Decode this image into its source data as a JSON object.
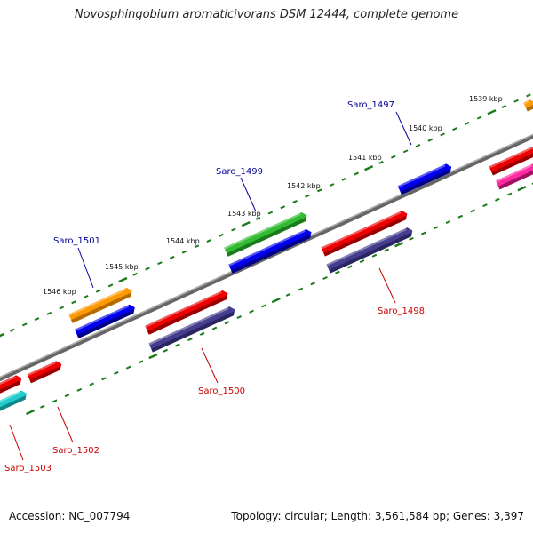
{
  "title": "Novosphingobium aromaticivorans DSM 12444, complete genome",
  "footer": {
    "accession": "Accession: NC_007794",
    "summary": "Topology: circular; Length: 3,561,584 bp; Genes: 3,397"
  },
  "scale": {
    "kbp_labels": [
      "1539 kbp",
      "1540 kbp",
      "1541 kbp",
      "1542 kbp",
      "1543 kbp",
      "1544 kbp",
      "1545 kbp",
      "1546 kbp"
    ]
  },
  "genes": [
    {
      "id": "Saro_1497",
      "label": "Saro_1497",
      "track": "outer-2",
      "color": "#0000ee"
    },
    {
      "id": "Saro_1498",
      "label": "Saro_1498",
      "track": "inner-1",
      "color": "#ee0000"
    },
    {
      "id": "Saro_1499",
      "label": "Saro_1499",
      "track": "outer-1",
      "color": "#33bb33"
    },
    {
      "id": "Saro_1500",
      "label": "Saro_1500",
      "track": "inner-1",
      "color": "#ee0000"
    },
    {
      "id": "Saro_1501",
      "label": "Saro_1501",
      "track": "outer-1",
      "color": "#ff9900"
    },
    {
      "id": "Saro_1502",
      "label": "Saro_1502",
      "track": "inner-1",
      "color": "#ee0000"
    },
    {
      "id": "Saro_1503",
      "label": "Saro_1503",
      "track": "inner-2",
      "color": "#ee0000"
    }
  ],
  "colors": {
    "label_blue": "#000099",
    "label_red": "#cc0000",
    "backbone": "#888888",
    "tick": "#1a7a1a"
  }
}
